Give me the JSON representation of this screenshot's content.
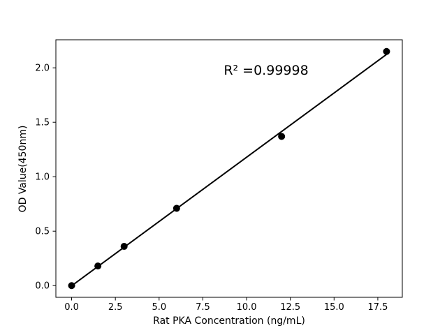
{
  "figure": {
    "background_color": "#ffffff",
    "foreground_color": "#000000"
  },
  "chart_data": {
    "type": "scatter",
    "title": "",
    "xlabel": "Rat PKA Concentration (ng/mL)",
    "ylabel": "OD Value(450nm)",
    "annotation": "R² =0.99998",
    "x": [
      0,
      1.5,
      3,
      6,
      12,
      18
    ],
    "y": [
      0.0,
      0.18,
      0.36,
      0.71,
      1.37,
      2.15
    ],
    "fit_line": true,
    "xlim": [
      -0.9,
      18.9
    ],
    "ylim": [
      -0.1075,
      2.2575
    ],
    "xticks": [
      0.0,
      2.5,
      5.0,
      7.5,
      10.0,
      12.5,
      15.0,
      17.5
    ],
    "xtick_labels": [
      "0.0",
      "2.5",
      "5.0",
      "7.5",
      "10.0",
      "12.5",
      "15.0",
      "17.5"
    ],
    "yticks": [
      0.0,
      0.5,
      1.0,
      1.5,
      2.0
    ],
    "ytick_labels": [
      "0.0",
      "0.5",
      "1.0",
      "1.5",
      "2.0"
    ],
    "grid": false,
    "legend": null,
    "marker_color": "#000000",
    "line_color": "#000000"
  }
}
